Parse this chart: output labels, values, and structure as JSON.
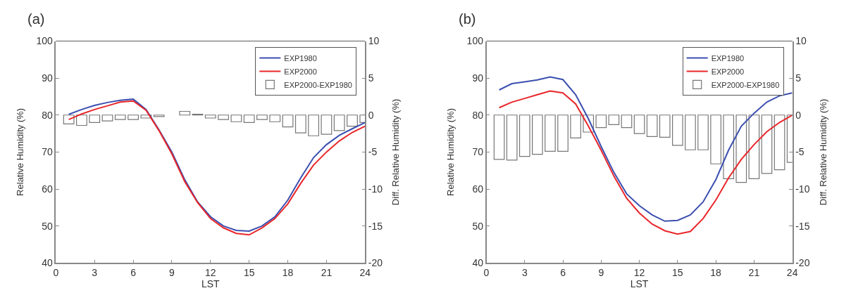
{
  "chart_data": [
    {
      "type": "line",
      "title": "(a)",
      "xlabel": "LST",
      "ylabel": "Relative Humidity (%)",
      "y2label": "Diff. Relative Humidity (%)",
      "x": [
        1,
        2,
        3,
        4,
        5,
        6,
        7,
        8,
        9,
        10,
        11,
        12,
        13,
        14,
        15,
        16,
        17,
        18,
        19,
        20,
        21,
        22,
        23,
        24
      ],
      "xlim": [
        0,
        24
      ],
      "xticks": [
        0,
        3,
        6,
        9,
        12,
        15,
        18,
        21,
        24
      ],
      "ylim": [
        40,
        100
      ],
      "yticks": [
        40,
        50,
        60,
        70,
        80,
        90,
        100
      ],
      "y2lim": [
        -20,
        10
      ],
      "y2ticks": [
        -20,
        -15,
        -10,
        -5,
        0,
        5,
        10
      ],
      "grid": false,
      "legend": "top right",
      "marker": "none",
      "line_style": "solid",
      "series": [
        {
          "name": "EXP1980",
          "color": "#3b4fb0",
          "values": [
            80.2,
            81.5,
            82.6,
            83.4,
            84.0,
            84.3,
            81.5,
            76,
            70,
            62.5,
            56.5,
            52.5,
            50,
            48.8,
            48.6,
            50,
            52.5,
            57,
            63,
            68.5,
            72,
            74.5,
            76.3,
            78
          ]
        },
        {
          "name": "EXP2000",
          "color": "#e8262a",
          "values": [
            78.8,
            80.3,
            81.5,
            82.5,
            83.5,
            83.8,
            81.3,
            75.8,
            69.5,
            62,
            56.3,
            52,
            49.5,
            48,
            47.6,
            49.5,
            52,
            56,
            61.5,
            66.5,
            70,
            73,
            75.3,
            77
          ]
        },
        {
          "name": "EXP2000-EXP1980",
          "type": "bar",
          "axis": "y2",
          "color": "#ffffff",
          "values": [
            -1.2,
            -1.4,
            -1.0,
            -0.8,
            -0.6,
            -0.6,
            -0.4,
            -0.2,
            null,
            0.5,
            0.1,
            -0.4,
            -0.6,
            -0.9,
            -1.0,
            -0.6,
            -0.9,
            -1.6,
            -2.4,
            -2.8,
            -2.6,
            -2.1,
            -1.5,
            -1.0
          ]
        }
      ]
    },
    {
      "type": "line",
      "title": "(b)",
      "xlabel": "LST",
      "ylabel": "Relative Humidity (%)",
      "y2label": "Diff. Relative Humidity (%)",
      "x": [
        1,
        2,
        3,
        4,
        5,
        6,
        7,
        8,
        9,
        10,
        11,
        12,
        13,
        14,
        15,
        16,
        17,
        18,
        19,
        20,
        21,
        22,
        23,
        24
      ],
      "xlim": [
        0,
        24
      ],
      "xticks": [
        0,
        3,
        6,
        9,
        12,
        15,
        18,
        21,
        24
      ],
      "ylim": [
        40,
        100
      ],
      "yticks": [
        40,
        50,
        60,
        70,
        80,
        90,
        100
      ],
      "y2lim": [
        -20,
        10
      ],
      "y2ticks": [
        -20,
        -15,
        -10,
        -5,
        0,
        5,
        10
      ],
      "grid": false,
      "legend": "top right",
      "marker": "none",
      "line_style": "solid",
      "series": [
        {
          "name": "EXP1980",
          "color": "#3b4fb0",
          "values": [
            86.8,
            88.5,
            89,
            89.5,
            90.3,
            89.6,
            85.5,
            79,
            71.5,
            64.5,
            58.7,
            55.5,
            53,
            51.3,
            51.5,
            53,
            56.5,
            62.5,
            70.5,
            77,
            80.5,
            83.5,
            85.2,
            86
          ]
        },
        {
          "name": "EXP2000",
          "color": "#e8262a",
          "values": [
            82,
            83.5,
            84.5,
            85.5,
            86.5,
            86,
            83,
            77,
            70.5,
            63.5,
            57.5,
            53.5,
            50.5,
            48.7,
            47.8,
            48.5,
            52,
            57,
            63,
            68,
            72,
            75.5,
            78,
            80
          ]
        },
        {
          "name": "EXP2000-EXP1980",
          "type": "bar",
          "axis": "y2",
          "color": "#ffffff",
          "values": [
            -6.0,
            -6.1,
            -5.6,
            -5.3,
            -4.9,
            -4.9,
            -3.1,
            -2.3,
            -1.7,
            -1.3,
            -1.7,
            -2.5,
            -2.9,
            -3.0,
            -4.1,
            -4.7,
            -4.7,
            -6.6,
            -8.6,
            -9.1,
            -8.6,
            -7.9,
            -7.4,
            -6.4
          ]
        }
      ]
    }
  ]
}
